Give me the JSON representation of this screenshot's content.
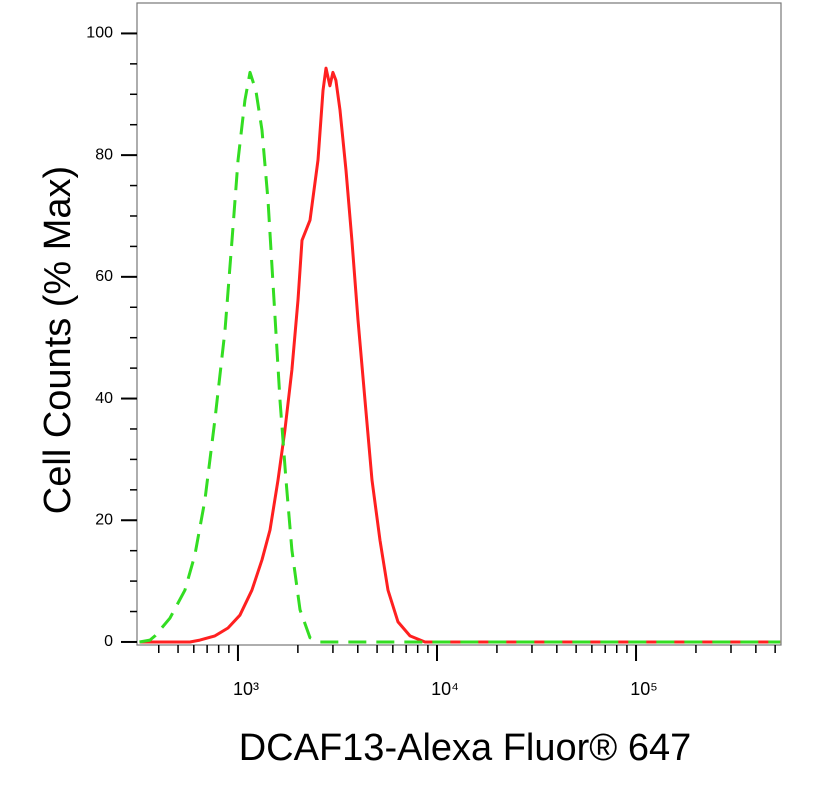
{
  "chart_data": {
    "type": "line",
    "x_label": "DCAF13-Alexa Fluor® 647",
    "y_label": "Cell Counts (% Max)",
    "xscale": "log",
    "xlim": [
      311,
      535000
    ],
    "ylim": [
      -0.5,
      105
    ],
    "xticks": [
      {
        "value": 1000,
        "label": "10³"
      },
      {
        "value": 10000,
        "label": "10⁴"
      },
      {
        "value": 100000,
        "label": "10⁵"
      }
    ],
    "xminorticks": [
      400,
      500,
      600,
      700,
      800,
      900,
      2000,
      3000,
      4000,
      5000,
      6000,
      7000,
      8000,
      9000,
      20000,
      30000,
      40000,
      50000,
      60000,
      70000,
      80000,
      90000,
      200000,
      300000,
      400000,
      500000
    ],
    "yticks": [
      0,
      20,
      40,
      60,
      80,
      100
    ],
    "yminorticks": [
      5,
      10,
      15,
      25,
      30,
      35,
      45,
      50,
      55,
      65,
      70,
      75,
      85,
      90,
      95
    ],
    "series": [
      {
        "color": "#ff2020",
        "dash": false,
        "x": [
          320,
          574,
          644,
          766,
          891,
          1023,
          1175,
          1320,
          1449,
          1589,
          1722,
          1866,
          2003,
          2097,
          2300,
          2523,
          2675,
          2768,
          2898,
          3000,
          3105,
          3256,
          3488,
          3738,
          4009,
          4347,
          4713,
          5170,
          5675,
          6367,
          7314,
          8704,
          530000
        ],
        "values": [
          0,
          0,
          0.3,
          1,
          2.3,
          4.4,
          8.5,
          13.5,
          18.4,
          26.6,
          34.8,
          44.7,
          56.2,
          66,
          69.3,
          79.2,
          90.6,
          94.3,
          91.4,
          93.6,
          92.3,
          87.4,
          77.5,
          66,
          52.9,
          39.7,
          26.6,
          16.7,
          8.5,
          3.3,
          1,
          0,
          0
        ]
      },
      {
        "color": "#33dd22",
        "dash": true,
        "x": [
          320,
          361,
          383,
          455,
          541,
          608,
          682,
          766,
          861,
          933,
          1000,
          1084,
          1149,
          1231,
          1320,
          1415,
          1517,
          1626,
          1743,
          1866,
          2050,
          2300,
          2583,
          530000
        ],
        "values": [
          0,
          0.3,
          1,
          3.9,
          8.5,
          14.3,
          23.3,
          36.5,
          51.2,
          66,
          79.1,
          89,
          93.6,
          90.6,
          84.1,
          72.6,
          56.2,
          39.7,
          26.6,
          15.1,
          5.3,
          0.7,
          0,
          0
        ]
      }
    ]
  }
}
